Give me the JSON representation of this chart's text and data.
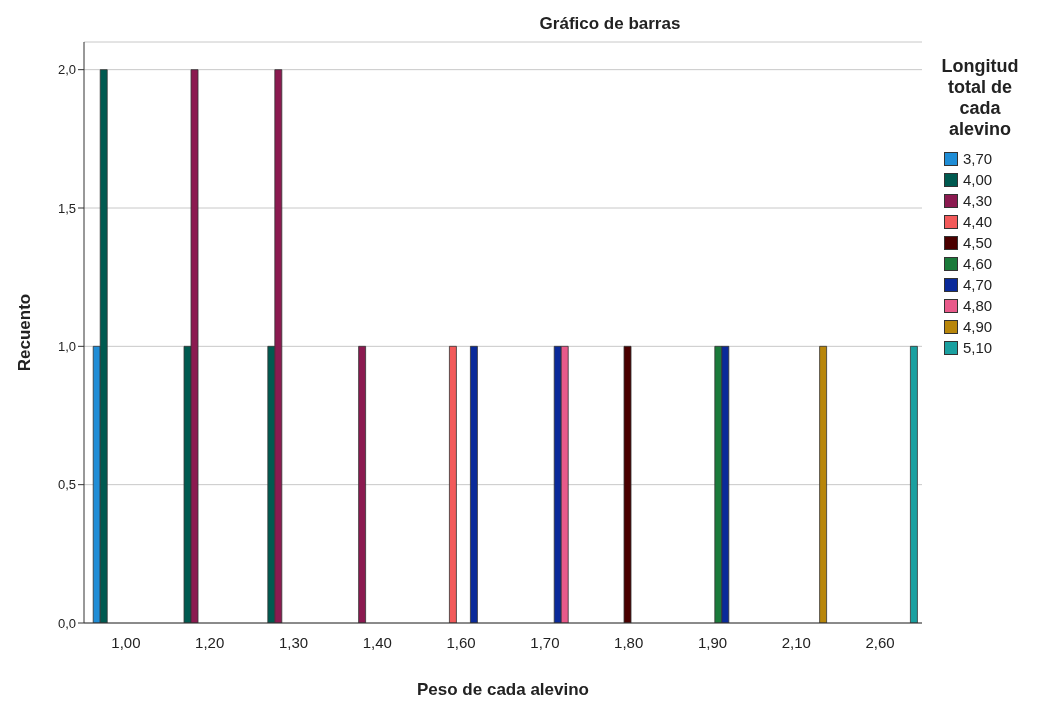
{
  "chart_data": {
    "type": "bar",
    "title": "Gráfico de barras",
    "xlabel": "Peso de cada alevino",
    "ylabel": "Recuento",
    "legend_title": "Longitud total de cada alevino",
    "categories": [
      "1,00",
      "1,20",
      "1,30",
      "1,40",
      "1,60",
      "1,70",
      "1,80",
      "1,90",
      "2,10",
      "2,60"
    ],
    "series": [
      {
        "name": "3,70",
        "color": "#1f8dd6",
        "values": [
          1,
          null,
          null,
          null,
          null,
          null,
          null,
          null,
          null,
          null
        ]
      },
      {
        "name": "4,00",
        "color": "#005a50",
        "values": [
          2,
          1,
          1,
          null,
          null,
          null,
          null,
          null,
          null,
          null
        ]
      },
      {
        "name": "4,30",
        "color": "#8b1a50",
        "values": [
          null,
          2,
          2,
          1,
          null,
          null,
          null,
          null,
          null,
          null
        ]
      },
      {
        "name": "4,40",
        "color": "#f25a5a",
        "values": [
          null,
          null,
          null,
          null,
          1,
          null,
          null,
          null,
          null,
          null
        ]
      },
      {
        "name": "4,50",
        "color": "#4a0000",
        "values": [
          null,
          null,
          null,
          null,
          null,
          null,
          1,
          null,
          null,
          null
        ]
      },
      {
        "name": "4,60",
        "color": "#1a7a3a",
        "values": [
          null,
          null,
          null,
          null,
          null,
          null,
          null,
          1,
          null,
          null
        ]
      },
      {
        "name": "4,70",
        "color": "#0a2a9a",
        "values": [
          null,
          null,
          null,
          null,
          1,
          1,
          null,
          1,
          null,
          null
        ]
      },
      {
        "name": "4,80",
        "color": "#e85a8a",
        "values": [
          null,
          null,
          null,
          null,
          null,
          1,
          null,
          null,
          null,
          null
        ]
      },
      {
        "name": "4,90",
        "color": "#b8860b",
        "values": [
          null,
          null,
          null,
          null,
          null,
          null,
          null,
          null,
          1,
          null
        ]
      },
      {
        "name": "5,10",
        "color": "#1aa0a0",
        "values": [
          null,
          null,
          null,
          null,
          null,
          null,
          null,
          null,
          null,
          1
        ]
      }
    ],
    "ylim": [
      0,
      2.1
    ],
    "yticks": [
      {
        "value": 0,
        "label": "0,0"
      },
      {
        "value": 0.5,
        "label": "0,5"
      },
      {
        "value": 1,
        "label": "1,0"
      },
      {
        "value": 1.5,
        "label": "1,5"
      },
      {
        "value": 2,
        "label": "2,0"
      }
    ],
    "grid": "y",
    "legend": "right"
  }
}
